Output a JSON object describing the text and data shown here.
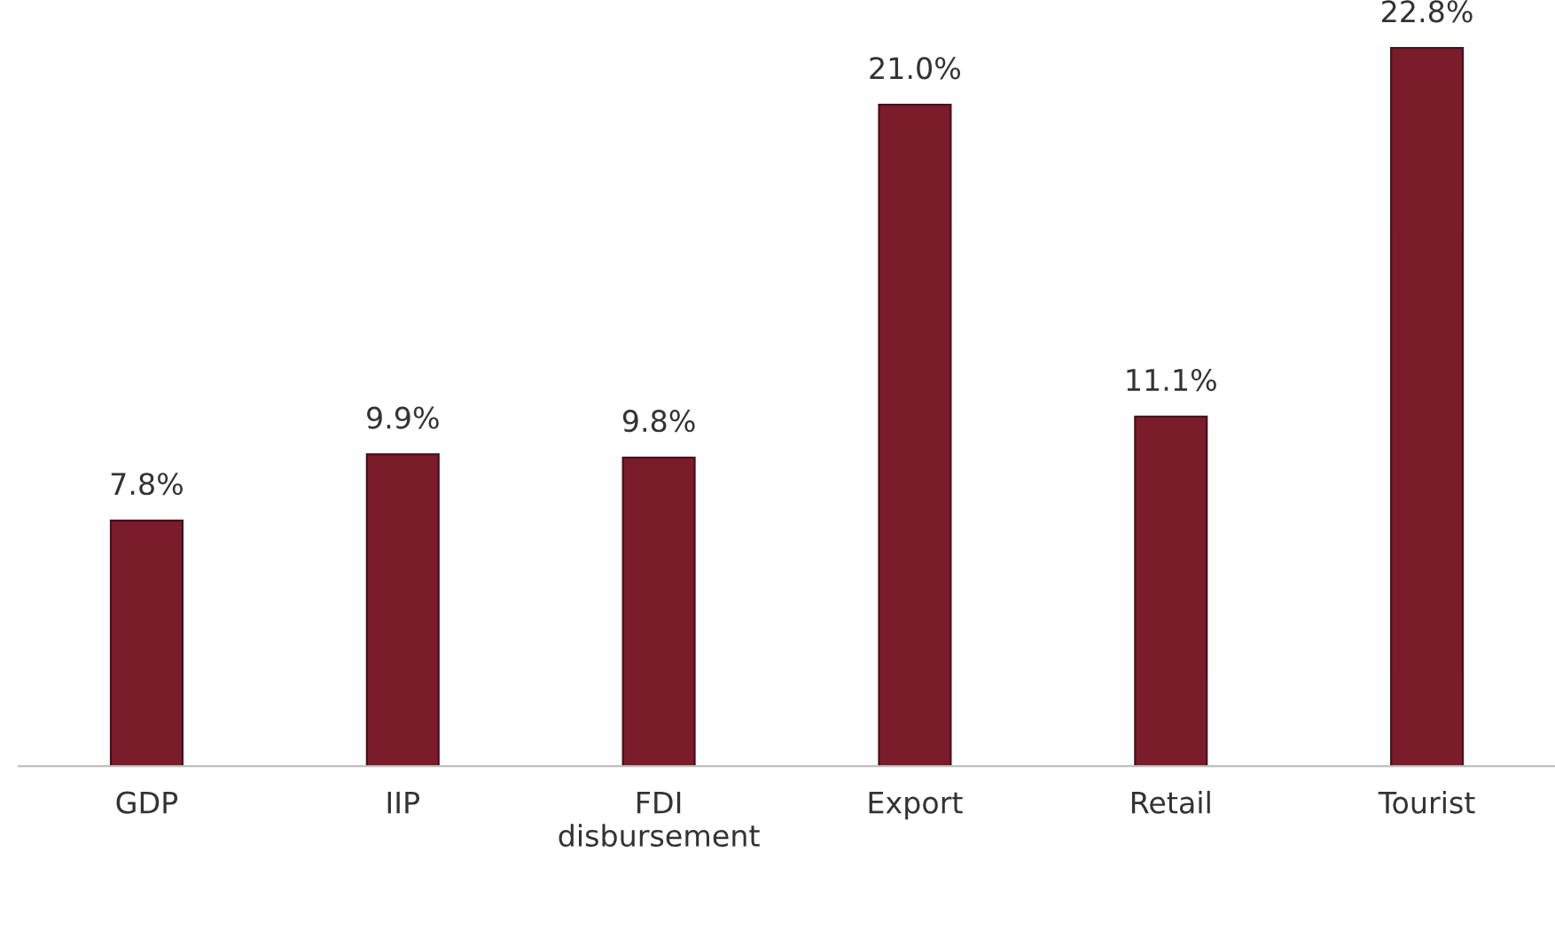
{
  "chart_data": {
    "type": "bar",
    "categories": [
      "GDP",
      "IIP",
      "FDI\ndisbursement",
      "Export",
      "Retail",
      "Tourist"
    ],
    "values": [
      7.8,
      9.9,
      9.8,
      21.0,
      11.1,
      22.8
    ],
    "value_labels": [
      "7.8%",
      "9.9%",
      "9.8%",
      "21.0%",
      "11.1%",
      "22.8%"
    ],
    "color": "#7b1c2b",
    "grid": false,
    "legend": false
  }
}
